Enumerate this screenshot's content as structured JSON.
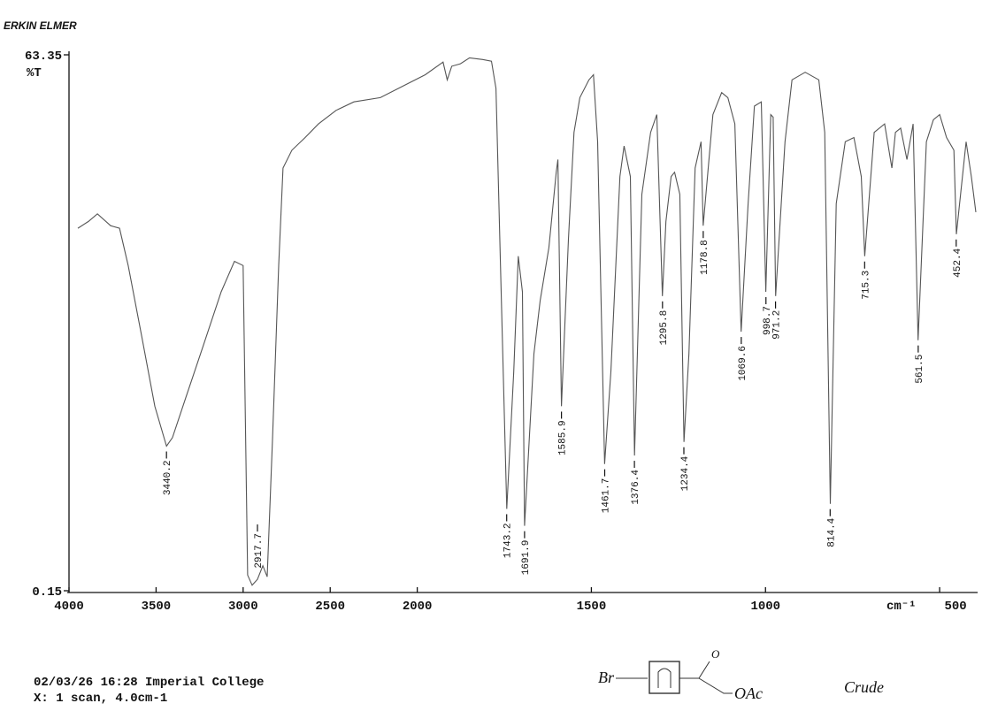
{
  "chart_data": {
    "type": "line",
    "brand": "ERKIN ELMER",
    "y_label": "%T",
    "x_label": "cm⁻¹",
    "xlim": [
      4000,
      396
    ],
    "xscale_break": 2000,
    "ylim": [
      0.15,
      63.35
    ],
    "yticks": [
      0.15,
      63.35
    ],
    "xticks": [
      4000,
      3500,
      3000,
      2500,
      2000,
      1500,
      1000,
      500
    ],
    "color": "#555555",
    "x": [
      3949,
      3888,
      3837,
      3761,
      3710,
      3660,
      3583,
      3507,
      3440,
      3406,
      3330,
      3228,
      3126,
      3050,
      3000,
      2974,
      2948,
      2918,
      2887,
      2862,
      2832,
      2796,
      2771,
      2720,
      2644,
      2567,
      2466,
      2364,
      2212,
      2060,
      1977,
      1926,
      1914,
      1901,
      1876,
      1850,
      1812,
      1787,
      1774,
      1761,
      1743,
      1723,
      1710,
      1698,
      1692,
      1665,
      1647,
      1622,
      1601,
      1596,
      1586,
      1566,
      1550,
      1533,
      1507,
      1494,
      1482,
      1462,
      1444,
      1418,
      1406,
      1388,
      1376,
      1355,
      1330,
      1312,
      1296,
      1286,
      1271,
      1261,
      1246,
      1234,
      1220,
      1202,
      1185,
      1179,
      1151,
      1126,
      1108,
      1088,
      1070,
      1050,
      1032,
      1012,
      999,
      985,
      978,
      971,
      944,
      924,
      886,
      847,
      830,
      814,
      797,
      771,
      746,
      725,
      715,
      688,
      658,
      637,
      627,
      612,
      594,
      576,
      562,
      538,
      518,
      500,
      480,
      459,
      452,
      424,
      409,
      396
    ],
    "values": [
      42.9,
      43.7,
      44.6,
      43.2,
      42.9,
      38.5,
      30.2,
      21.9,
      17.2,
      18.2,
      22.9,
      29.1,
      35.4,
      39.0,
      38.5,
      2.0,
      0.8,
      1.5,
      3.1,
      1.8,
      17.7,
      38.5,
      50.0,
      52.1,
      53.6,
      55.2,
      56.8,
      57.8,
      58.3,
      59.9,
      61.0,
      62.5,
      60.4,
      62.0,
      62.3,
      63.0,
      62.8,
      62.6,
      59.4,
      38.5,
      9.8,
      26.0,
      39.6,
      35.4,
      7.8,
      28.1,
      34.4,
      40.6,
      49.5,
      51.0,
      21.9,
      41.6,
      54.2,
      58.3,
      60.4,
      61.0,
      53.1,
      15.1,
      26.0,
      49.0,
      52.6,
      49.0,
      16.1,
      46.9,
      54.2,
      56.3,
      34.9,
      43.7,
      49.0,
      49.5,
      46.9,
      17.7,
      28.1,
      50.0,
      53.1,
      43.2,
      56.3,
      58.9,
      58.3,
      55.2,
      30.7,
      45.8,
      57.3,
      57.8,
      35.4,
      56.3,
      56.0,
      34.9,
      53.1,
      60.4,
      61.3,
      60.4,
      54.2,
      10.4,
      45.8,
      53.1,
      53.6,
      49.0,
      39.6,
      54.2,
      55.2,
      50.0,
      54.2,
      54.7,
      51.0,
      55.2,
      29.7,
      53.1,
      55.7,
      56.3,
      53.6,
      52.1,
      42.2,
      53.1,
      49.0,
      44.8
    ],
    "peaks": {
      "x": [
        3440.2,
        2917.7,
        1743.2,
        1691.9,
        1585.9,
        1461.7,
        1376.4,
        1295.8,
        1234.4,
        1178.8,
        1069.6,
        998.7,
        971.2,
        814.4,
        715.3,
        561.5,
        452.4
      ],
      "y": [
        17.2,
        1.5,
        9.8,
        7.8,
        21.9,
        15.1,
        16.1,
        34.9,
        17.7,
        43.2,
        30.7,
        35.4,
        34.9,
        10.4,
        39.6,
        29.7,
        42.2
      ]
    },
    "footer": [
      "02/03/26 16:28 Imperial College",
      "X: 1 scan, 4.0cm-1"
    ],
    "annotations": {
      "bromo": "Br",
      "oxo": "O",
      "acetoxy": "OAc",
      "note": "Crude"
    }
  }
}
